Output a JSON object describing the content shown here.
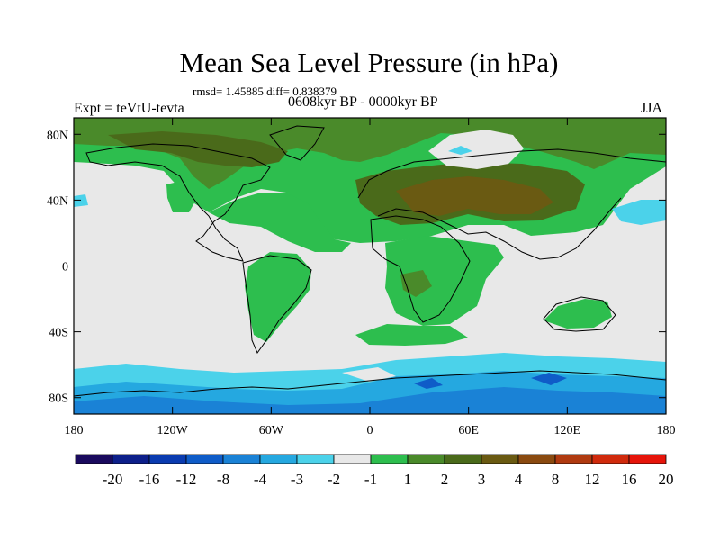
{
  "title": "Mean Sea Level Pressure (in hPa)",
  "stats_text": "rmsd= 1.45885 diff= 0.838379",
  "experiment_text": "Expt = teVtU-tevta",
  "period_text": "0608kyr BP - 0000kyr BP",
  "season": "JJA",
  "lat_labels": [
    "80N",
    "40N",
    "0",
    "40S",
    "80S"
  ],
  "lat_values": [
    80,
    40,
    0,
    -40,
    -80
  ],
  "lon_labels": [
    "180",
    "120W",
    "60W",
    "0",
    "60E",
    "120E",
    "180"
  ],
  "lon_values": [
    -180,
    -120,
    -60,
    0,
    60,
    120,
    180
  ],
  "colorbar": {
    "colors": [
      "#1a0a5e",
      "#0d1f8a",
      "#0a3bb0",
      "#0f5cc8",
      "#1a82d6",
      "#25a8e0",
      "#4bd2ea",
      "#e8e8e8",
      "#2dbe4e",
      "#4a8a2a",
      "#4a6a1a",
      "#6a5a12",
      "#8a4a10",
      "#b03a10",
      "#d02a0c",
      "#e6140a"
    ],
    "labels": [
      "-20",
      "-16",
      "-12",
      "-8",
      "-4",
      "-3",
      "-2",
      "-1",
      "1",
      "2",
      "3",
      "4",
      "8",
      "12",
      "16",
      "20"
    ]
  }
}
